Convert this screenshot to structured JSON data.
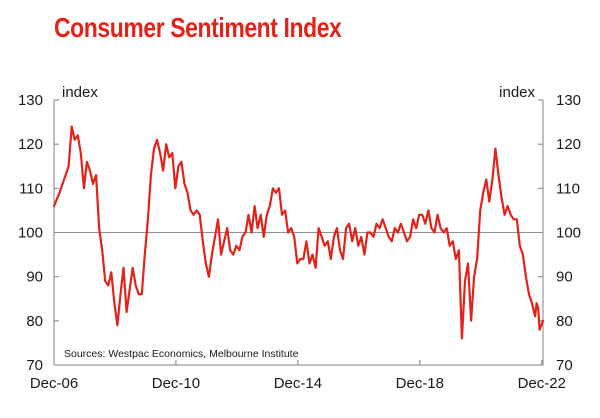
{
  "chart_data": {
    "type": "line",
    "title": "Consumer Sentiment Index",
    "unit_left": "index",
    "unit_right": "index",
    "source": "Sources: Westpac Economics, Melbourne Institute",
    "ylim": [
      70,
      130
    ],
    "yticks": [
      70,
      80,
      90,
      100,
      110,
      120,
      130
    ],
    "xlim": [
      2006.92,
      2022.96
    ],
    "xticks": [
      {
        "label": "Dec-06",
        "x": 2006.92
      },
      {
        "label": "Dec-10",
        "x": 2010.92
      },
      {
        "label": "Dec-14",
        "x": 2014.92
      },
      {
        "label": "Dec-18",
        "x": 2018.92
      },
      {
        "label": "Dec-22",
        "x": 2022.92
      }
    ],
    "reference_line": 100,
    "grid": false,
    "colors": {
      "title": "#e2231a",
      "series": "#e2231a",
      "axis": "#808080"
    },
    "series": [
      {
        "values": [
          [
            2006.92,
            106
          ],
          [
            2007.1,
            109
          ],
          [
            2007.3,
            113
          ],
          [
            2007.4,
            115
          ],
          [
            2007.5,
            124
          ],
          [
            2007.6,
            121
          ],
          [
            2007.7,
            122
          ],
          [
            2007.8,
            118
          ],
          [
            2007.9,
            110
          ],
          [
            2008.0,
            116
          ],
          [
            2008.1,
            114
          ],
          [
            2008.2,
            111
          ],
          [
            2008.3,
            113
          ],
          [
            2008.4,
            101
          ],
          [
            2008.5,
            96
          ],
          [
            2008.6,
            89
          ],
          [
            2008.7,
            88
          ],
          [
            2008.8,
            91
          ],
          [
            2008.9,
            84
          ],
          [
            2009.0,
            79
          ],
          [
            2009.1,
            86
          ],
          [
            2009.2,
            92
          ],
          [
            2009.3,
            82
          ],
          [
            2009.4,
            87
          ],
          [
            2009.5,
            92
          ],
          [
            2009.6,
            88
          ],
          [
            2009.7,
            86
          ],
          [
            2009.8,
            86
          ],
          [
            2009.9,
            95
          ],
          [
            2010.0,
            103
          ],
          [
            2010.1,
            113
          ],
          [
            2010.2,
            119
          ],
          [
            2010.3,
            121
          ],
          [
            2010.4,
            118
          ],
          [
            2010.5,
            114
          ],
          [
            2010.6,
            120
          ],
          [
            2010.7,
            117
          ],
          [
            2010.8,
            118
          ],
          [
            2010.9,
            110
          ],
          [
            2011.0,
            115
          ],
          [
            2011.1,
            116
          ],
          [
            2011.2,
            111
          ],
          [
            2011.3,
            109
          ],
          [
            2011.4,
            105
          ],
          [
            2011.5,
            104
          ],
          [
            2011.6,
            105
          ],
          [
            2011.7,
            104
          ],
          [
            2011.8,
            98
          ],
          [
            2011.9,
            93
          ],
          [
            2012.0,
            90
          ],
          [
            2012.1,
            95
          ],
          [
            2012.2,
            99
          ],
          [
            2012.3,
            103
          ],
          [
            2012.4,
            95
          ],
          [
            2012.5,
            98
          ],
          [
            2012.6,
            101
          ],
          [
            2012.7,
            96
          ],
          [
            2012.8,
            95
          ],
          [
            2012.9,
            97
          ],
          [
            2013.0,
            96
          ],
          [
            2013.1,
            99
          ],
          [
            2013.2,
            100
          ],
          [
            2013.3,
            104
          ],
          [
            2013.4,
            100
          ],
          [
            2013.5,
            106
          ],
          [
            2013.6,
            101
          ],
          [
            2013.7,
            104
          ],
          [
            2013.8,
            99
          ],
          [
            2013.9,
            104
          ],
          [
            2014.0,
            106
          ],
          [
            2014.1,
            110
          ],
          [
            2014.2,
            109
          ],
          [
            2014.3,
            110
          ],
          [
            2014.4,
            104
          ],
          [
            2014.5,
            105
          ],
          [
            2014.6,
            100
          ],
          [
            2014.7,
            101
          ],
          [
            2014.8,
            99
          ],
          [
            2014.9,
            93
          ],
          [
            2015.0,
            94
          ],
          [
            2015.1,
            94
          ],
          [
            2015.2,
            98
          ],
          [
            2015.3,
            93
          ],
          [
            2015.4,
            95
          ],
          [
            2015.5,
            92
          ],
          [
            2015.6,
            101
          ],
          [
            2015.7,
            99
          ],
          [
            2015.8,
            97
          ],
          [
            2015.9,
            98
          ],
          [
            2016.0,
            94
          ],
          [
            2016.1,
            99
          ],
          [
            2016.2,
            101
          ],
          [
            2016.3,
            96
          ],
          [
            2016.4,
            94
          ],
          [
            2016.5,
            101
          ],
          [
            2016.6,
            102
          ],
          [
            2016.7,
            98
          ],
          [
            2016.8,
            101
          ],
          [
            2016.9,
            97
          ],
          [
            2017.0,
            99
          ],
          [
            2017.1,
            95
          ],
          [
            2017.2,
            100
          ],
          [
            2017.3,
            100
          ],
          [
            2017.4,
            99
          ],
          [
            2017.5,
            102
          ],
          [
            2017.6,
            101
          ],
          [
            2017.7,
            103
          ],
          [
            2017.8,
            101
          ],
          [
            2017.9,
            99
          ],
          [
            2018.0,
            98
          ],
          [
            2018.1,
            101
          ],
          [
            2018.2,
            100
          ],
          [
            2018.3,
            102
          ],
          [
            2018.4,
            100
          ],
          [
            2018.5,
            98
          ],
          [
            2018.6,
            99
          ],
          [
            2018.7,
            103
          ],
          [
            2018.8,
            101
          ],
          [
            2018.9,
            104
          ],
          [
            2019.0,
            104
          ],
          [
            2019.1,
            102
          ],
          [
            2019.2,
            105
          ],
          [
            2019.3,
            101
          ],
          [
            2019.4,
            100
          ],
          [
            2019.5,
            104
          ],
          [
            2019.6,
            101
          ],
          [
            2019.7,
            100
          ],
          [
            2019.8,
            101
          ],
          [
            2019.9,
            97
          ],
          [
            2020.0,
            98
          ],
          [
            2020.1,
            94
          ],
          [
            2020.2,
            96
          ],
          [
            2020.3,
            76
          ],
          [
            2020.4,
            89
          ],
          [
            2020.5,
            93
          ],
          [
            2020.6,
            80
          ],
          [
            2020.7,
            90
          ],
          [
            2020.8,
            94
          ],
          [
            2020.9,
            105
          ],
          [
            2021.0,
            109
          ],
          [
            2021.1,
            112
          ],
          [
            2021.2,
            107
          ],
          [
            2021.3,
            112
          ],
          [
            2021.4,
            119
          ],
          [
            2021.5,
            113
          ],
          [
            2021.6,
            108
          ],
          [
            2021.7,
            104
          ],
          [
            2021.8,
            106
          ],
          [
            2021.9,
            104
          ],
          [
            2022.0,
            103
          ],
          [
            2022.1,
            103
          ],
          [
            2022.2,
            97
          ],
          [
            2022.3,
            95
          ],
          [
            2022.4,
            90
          ],
          [
            2022.5,
            86
          ],
          [
            2022.6,
            84
          ],
          [
            2022.7,
            81
          ],
          [
            2022.75,
            84
          ],
          [
            2022.8,
            83
          ],
          [
            2022.85,
            78
          ],
          [
            2022.96,
            80
          ]
        ]
      }
    ]
  }
}
